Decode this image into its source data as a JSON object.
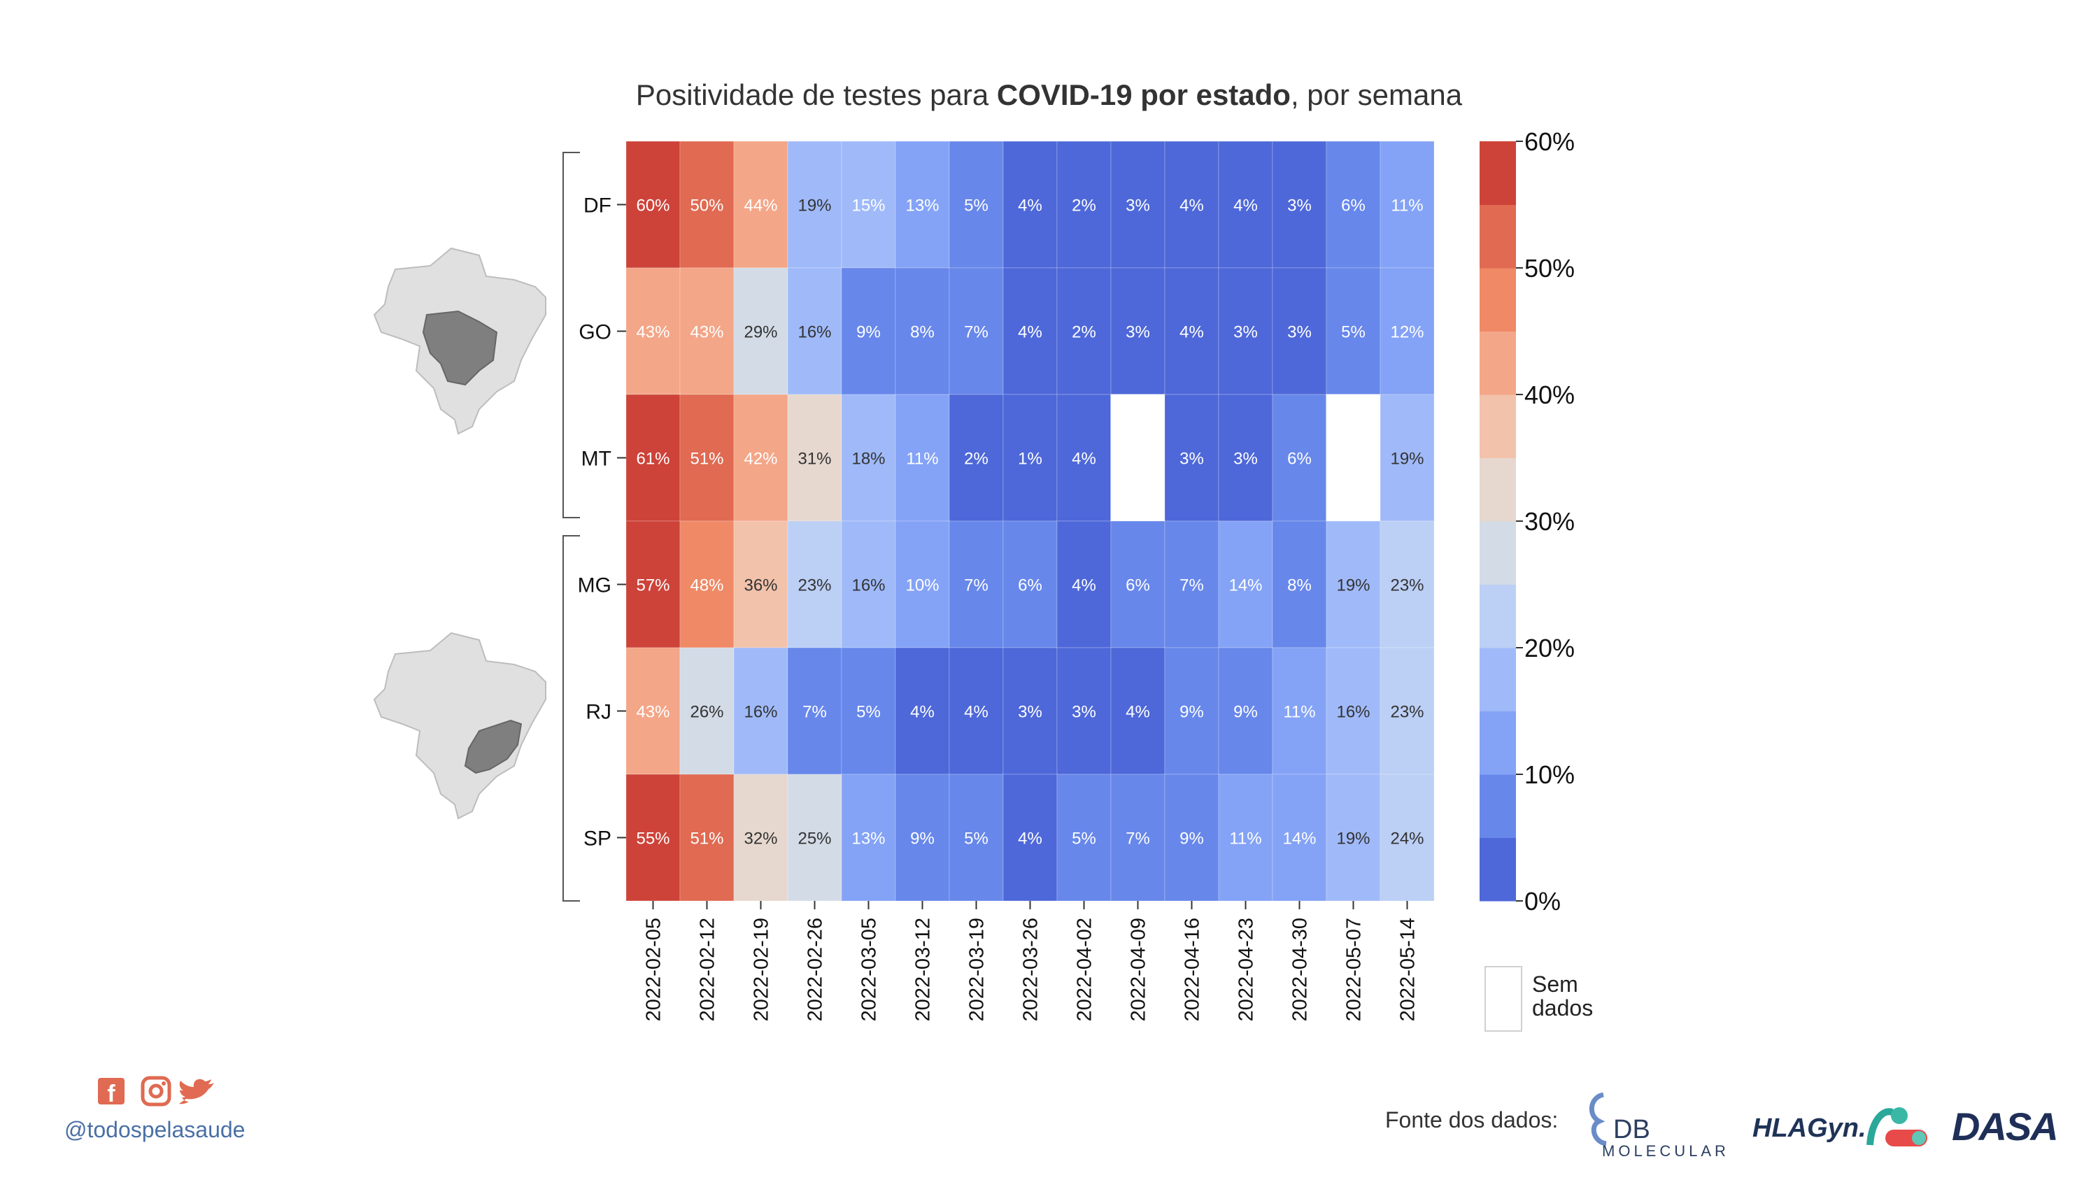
{
  "title": {
    "prefix": "Positividade de testes para ",
    "bold": "COVID-19 por estado",
    "suffix": ", por semana"
  },
  "chart_data": {
    "type": "heatmap",
    "rows": [
      "DF",
      "GO",
      "MT",
      "MG",
      "RJ",
      "SP"
    ],
    "columns": [
      "2022-02-05",
      "2022-02-12",
      "2022-02-19",
      "2022-02-26",
      "2022-03-05",
      "2022-03-12",
      "2022-03-19",
      "2022-03-26",
      "2022-04-02",
      "2022-04-09",
      "2022-04-16",
      "2022-04-23",
      "2022-04-30",
      "2022-05-07",
      "2022-05-14"
    ],
    "values": [
      [
        60,
        50,
        44,
        19,
        15,
        13,
        5,
        4,
        2,
        3,
        4,
        4,
        3,
        6,
        11
      ],
      [
        43,
        43,
        29,
        16,
        9,
        8,
        7,
        4,
        2,
        3,
        4,
        3,
        3,
        5,
        12
      ],
      [
        61,
        51,
        42,
        31,
        18,
        11,
        2,
        1,
        4,
        null,
        3,
        3,
        6,
        null,
        19
      ],
      [
        57,
        48,
        36,
        23,
        16,
        10,
        7,
        6,
        4,
        6,
        7,
        14,
        8,
        19,
        23
      ],
      [
        43,
        26,
        16,
        7,
        5,
        4,
        4,
        3,
        3,
        4,
        9,
        9,
        11,
        16,
        23
      ],
      [
        55,
        51,
        32,
        25,
        13,
        9,
        5,
        4,
        5,
        7,
        9,
        11,
        14,
        19,
        24
      ]
    ],
    "value_suffix": "%",
    "colorbar": {
      "ticks": [
        "0%",
        "10%",
        "20%",
        "30%",
        "40%",
        "50%",
        "60%"
      ],
      "range": [
        0,
        60
      ],
      "bins": 12,
      "colors": [
        "#4e68d9",
        "#6787ea",
        "#84a3f6",
        "#a0baf9",
        "#bccff5",
        "#d3dbe6",
        "#e6d8cf",
        "#f2c2ab",
        "#f4a688",
        "#ef8966",
        "#e06a52",
        "#cd4339"
      ]
    },
    "missing_label": [
      "Sem",
      "dados"
    ]
  },
  "footer": {
    "handle": "@todospelasaude",
    "source_label": "Fonte dos dados:",
    "logos": [
      "DB",
      "MOLECULAR",
      "HLAGyn.",
      "DASA"
    ]
  },
  "icons": [
    "facebook-icon",
    "instagram-icon",
    "twitter-icon"
  ]
}
